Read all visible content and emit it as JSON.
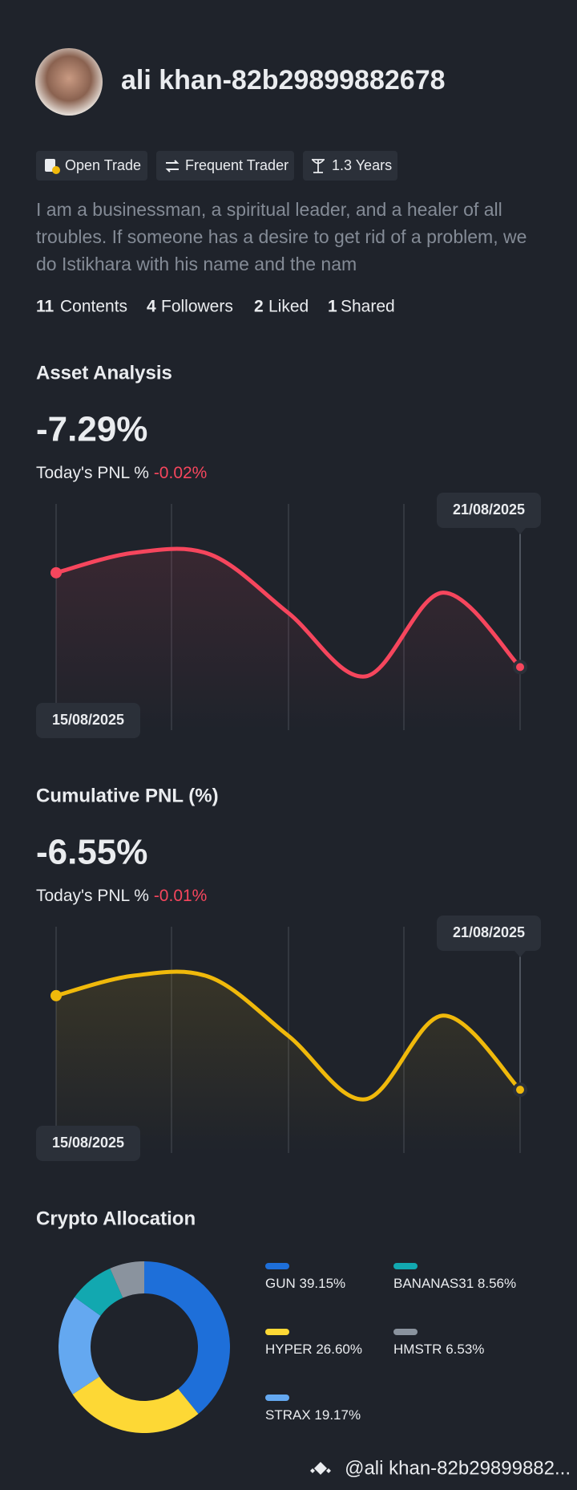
{
  "profile": {
    "name": "ali khan-82b29899882678",
    "badges": [
      "Open Trade",
      "Frequent Trader",
      "1.3 Years"
    ],
    "bio": "I am a businessman, a spiritual leader, and a healer of all troubles. If someone has a desire to get rid of a problem, we do Istikhara with his name and the nam",
    "stats": [
      {
        "count": 11,
        "label": "Contents"
      },
      {
        "count": 4,
        "label": "Followers"
      },
      {
        "count": 2,
        "label": "Liked"
      },
      {
        "count": 1,
        "label": "Shared"
      }
    ]
  },
  "chart_data": [
    {
      "type": "line",
      "title": "Asset Analysis",
      "headline": "-7.29%",
      "pnl_label": "Today's PNL %",
      "pnl_value": "-0.02%",
      "categories": [
        "15/08/2025",
        null,
        null,
        null,
        null,
        null,
        "21/08/2025"
      ],
      "series": [
        {
          "color": "#f6465d",
          "values": [
            0,
            1.54,
            1.4,
            -3.09,
            -8.01,
            -1.54,
            -7.29
          ]
        }
      ]
    },
    {
      "type": "line",
      "title": "Cumulative PNL (%)",
      "headline": "-6.55%",
      "pnl_label": "Today's PNL %",
      "pnl_value": "-0.01%",
      "categories": [
        "15/08/2025",
        null,
        null,
        null,
        null,
        null,
        "21/08/2025"
      ],
      "series": [
        {
          "color": "#f0b90b",
          "values": [
            0,
            1.39,
            1.26,
            -2.78,
            -7.21,
            -1.39,
            -6.55
          ]
        }
      ]
    },
    {
      "type": "pie",
      "title": "Crypto Allocation",
      "categories": [
        "GUN",
        "HYPER",
        "STRAX",
        "BANANAS31",
        "HMSTR"
      ],
      "values": [
        39.15,
        26.6,
        19.17,
        8.56,
        6.53
      ],
      "value_labels": [
        "39.15%",
        "26.60%",
        "19.17%",
        "8.56%",
        "6.53%"
      ],
      "colors": [
        "#1e6fd9",
        "#fdd835",
        "#64a8f0",
        "#12a8b0",
        "#8a939e"
      ]
    }
  ],
  "footer": "@ali khan-82b29899882..."
}
